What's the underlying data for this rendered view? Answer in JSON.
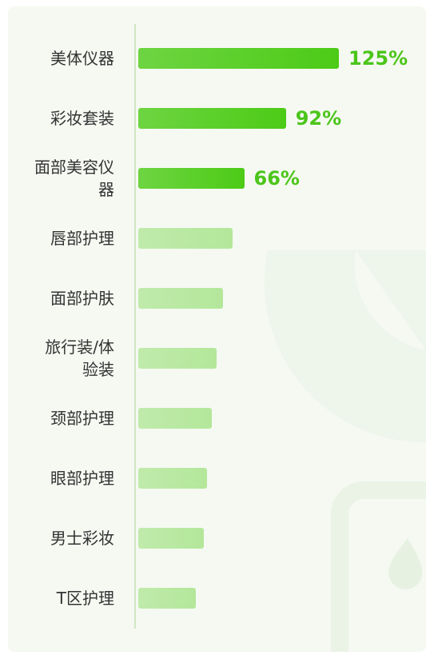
{
  "chart_data": {
    "type": "bar",
    "orientation": "horizontal",
    "categories": [
      "美体仪器",
      "彩妆套装",
      "面部美容仪器",
      "唇部护理",
      "面部护肤",
      "旅行装/体验装",
      "颈部护理",
      "眼部护理",
      "男士彩妆",
      "T区护理"
    ],
    "values": [
      125,
      92,
      66,
      59,
      53,
      49,
      46,
      43,
      41,
      36
    ],
    "value_labels": [
      "125%",
      "92%",
      "66%",
      null,
      null,
      null,
      null,
      null,
      null,
      null
    ],
    "colors": [
      "#4ccb16",
      "#4ccb16",
      "#4ccb16",
      "#b3e79a",
      "#b3e79a",
      "#b3e79a",
      "#b3e79a",
      "#b3e79a",
      "#b3e79a",
      "#b3e79a"
    ],
    "xlim": [
      0,
      125
    ]
  }
}
